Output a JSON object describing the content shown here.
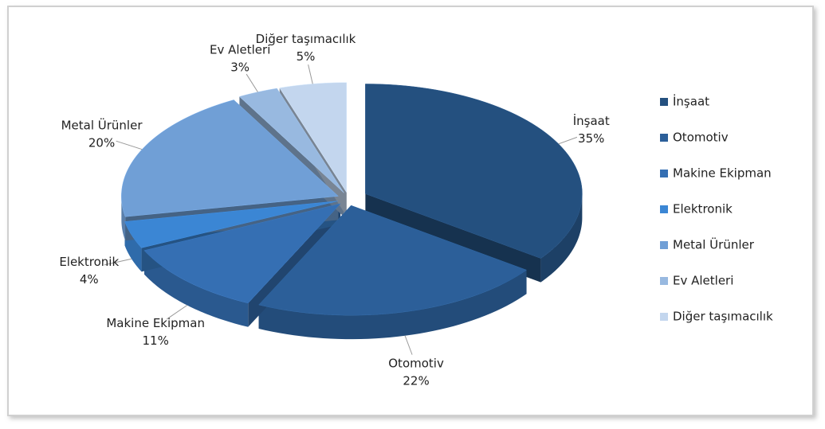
{
  "chart_data": {
    "type": "pie3d",
    "categories": [
      "İnşaat",
      "Otomotiv",
      "Makine Ekipman",
      "Elektronik",
      "Metal Ürünler",
      "Ev Aletleri",
      "Diğer taşımacılık"
    ],
    "values": [
      35,
      22,
      11,
      4,
      20,
      3,
      5
    ],
    "value_labels": [
      "35%",
      "22%",
      "11%",
      "4%",
      "20%",
      "3%",
      "5%"
    ],
    "colors": [
      "#24507f",
      "#2c5f99",
      "#356fb3",
      "#3b86d4",
      "#709fd6",
      "#98b9e0",
      "#c3d6ee"
    ],
    "legend": "right"
  }
}
